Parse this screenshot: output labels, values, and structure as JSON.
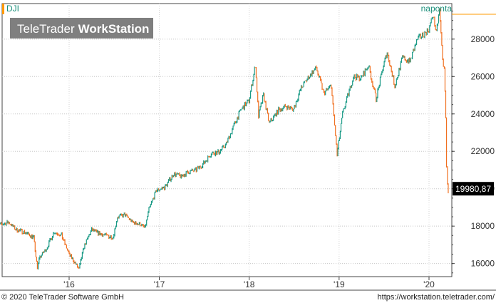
{
  "header": {
    "symbol": "DJI",
    "period": "naponta",
    "watermark_brand": "TeleTrader",
    "watermark_product": "WorkStation"
  },
  "footer": {
    "copyright": "© 2020 TeleTrader Software GmbH",
    "url": "https://workstation.teletrader.com/"
  },
  "colors": {
    "up": "#1a9a86",
    "down": "#f07020",
    "accent": "#ff9900",
    "last_price_bg": "#000000"
  },
  "chart_data": {
    "type": "line",
    "title": "",
    "xlabel": "",
    "ylabel": "",
    "grid": true,
    "legend": "none",
    "x_ticks": [
      "'16",
      "'17",
      "'18",
      "'19",
      "'20"
    ],
    "y_ticks": [
      16000,
      18000,
      20000,
      22000,
      24000,
      26000,
      28000
    ],
    "ylim": [
      15300,
      29900
    ],
    "last_value": 19980.87,
    "last_value_label": "19980,87",
    "series": [
      {
        "values": [
          [
            "2015-03-01",
            17900
          ],
          [
            "2015-04-01",
            18100
          ],
          [
            "2015-05-01",
            18200
          ],
          [
            "2015-06-01",
            17800
          ],
          [
            "2015-07-01",
            17700
          ],
          [
            "2015-08-10",
            17400
          ],
          [
            "2015-08-25",
            15700
          ],
          [
            "2015-09-01",
            16300
          ],
          [
            "2015-10-01",
            16800
          ],
          [
            "2015-11-01",
            17700
          ],
          [
            "2015-12-01",
            17500
          ],
          [
            "2016-01-01",
            16500
          ],
          [
            "2016-02-10",
            15700
          ],
          [
            "2016-03-01",
            16900
          ],
          [
            "2016-04-01",
            17800
          ],
          [
            "2016-05-01",
            17600
          ],
          [
            "2016-06-27",
            17400
          ],
          [
            "2016-07-15",
            18500
          ],
          [
            "2016-08-15",
            18600
          ],
          [
            "2016-09-15",
            18200
          ],
          [
            "2016-10-15",
            18100
          ],
          [
            "2016-11-04",
            17900
          ],
          [
            "2016-11-20",
            18900
          ],
          [
            "2016-12-20",
            19900
          ],
          [
            "2017-01-25",
            20100
          ],
          [
            "2017-02-28",
            20800
          ],
          [
            "2017-03-31",
            20650
          ],
          [
            "2017-04-30",
            20900
          ],
          [
            "2017-05-31",
            21000
          ],
          [
            "2017-06-30",
            21350
          ],
          [
            "2017-07-31",
            21900
          ],
          [
            "2017-08-31",
            21950
          ],
          [
            "2017-09-30",
            22400
          ],
          [
            "2017-10-31",
            23400
          ],
          [
            "2017-11-30",
            24250
          ],
          [
            "2017-12-31",
            24700
          ],
          [
            "2018-01-26",
            26600
          ],
          [
            "2018-02-08",
            23900
          ],
          [
            "2018-02-28",
            25000
          ],
          [
            "2018-03-23",
            23500
          ],
          [
            "2018-04-30",
            24200
          ],
          [
            "2018-05-31",
            24400
          ],
          [
            "2018-06-30",
            24250
          ],
          [
            "2018-07-31",
            25400
          ],
          [
            "2018-08-31",
            26000
          ],
          [
            "2018-09-30",
            26450
          ],
          [
            "2018-10-31",
            25100
          ],
          [
            "2018-11-30",
            25500
          ],
          [
            "2018-12-24",
            21800
          ],
          [
            "2019-01-15",
            24000
          ],
          [
            "2019-02-28",
            26000
          ],
          [
            "2019-03-31",
            25900
          ],
          [
            "2019-04-30",
            26600
          ],
          [
            "2019-05-31",
            24800
          ],
          [
            "2019-06-30",
            26600
          ],
          [
            "2019-07-15",
            27300
          ],
          [
            "2019-08-15",
            25500
          ],
          [
            "2019-09-15",
            27000
          ],
          [
            "2019-10-15",
            26800
          ],
          [
            "2019-11-15",
            28000
          ],
          [
            "2019-12-31",
            28500
          ],
          [
            "2020-01-17",
            29300
          ],
          [
            "2020-01-31",
            28300
          ],
          [
            "2020-02-12",
            29550
          ],
          [
            "2020-02-25",
            27000
          ],
          [
            "2020-03-03",
            26300
          ],
          [
            "2020-03-09",
            23900
          ],
          [
            "2020-03-12",
            21200
          ],
          [
            "2020-03-16",
            20200
          ],
          [
            "2020-03-19",
            19900
          ],
          [
            "2020-03-20",
            19980.87
          ]
        ]
      }
    ]
  }
}
